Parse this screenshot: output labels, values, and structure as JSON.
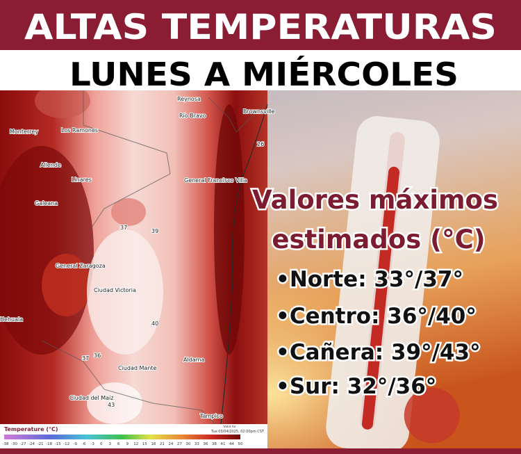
{
  "header": {
    "title": "ALTAS TEMPERATURAS",
    "subtitle": "LUNES A MIÉRCOLES"
  },
  "panel": {
    "heading_line1": "Valores máximos",
    "heading_line2": "estimados (°C)",
    "items": [
      "•Norte: 33°/37°",
      "•Centro: 36°/40°",
      "•Cañera: 39°/43°",
      "•Sur: 32°/36°"
    ]
  },
  "map": {
    "labels": [
      "Reynosa",
      "Brownsville",
      "Monterrey",
      "Los Ramones",
      "Río Bravo",
      "26",
      "Allende",
      "General Francisco Villa",
      "Galeana",
      "Linares",
      "37",
      "39",
      "General Zaragoza",
      "Ciudad Victoria",
      "Hehuala",
      "40",
      "37",
      "36",
      "Aldama",
      "Ciudad Mante",
      "Ciudad del Maíz",
      "43",
      "Tampico"
    ],
    "legend_title": "Temperature (°C)",
    "valid_line1": "Valid for",
    "valid_line2": "Tue 03/04/2025, 02:00pm CST",
    "legend_ticks": [
      "-38",
      "-30",
      "-27",
      "-24",
      "-21",
      "-18",
      "-15",
      "-12",
      "-9",
      "-6",
      "-3",
      "0",
      "3",
      "6",
      "9",
      "12",
      "15",
      "18",
      "21",
      "24",
      "27",
      "30",
      "33",
      "36",
      "38",
      "41",
      "44",
      "50"
    ]
  }
}
